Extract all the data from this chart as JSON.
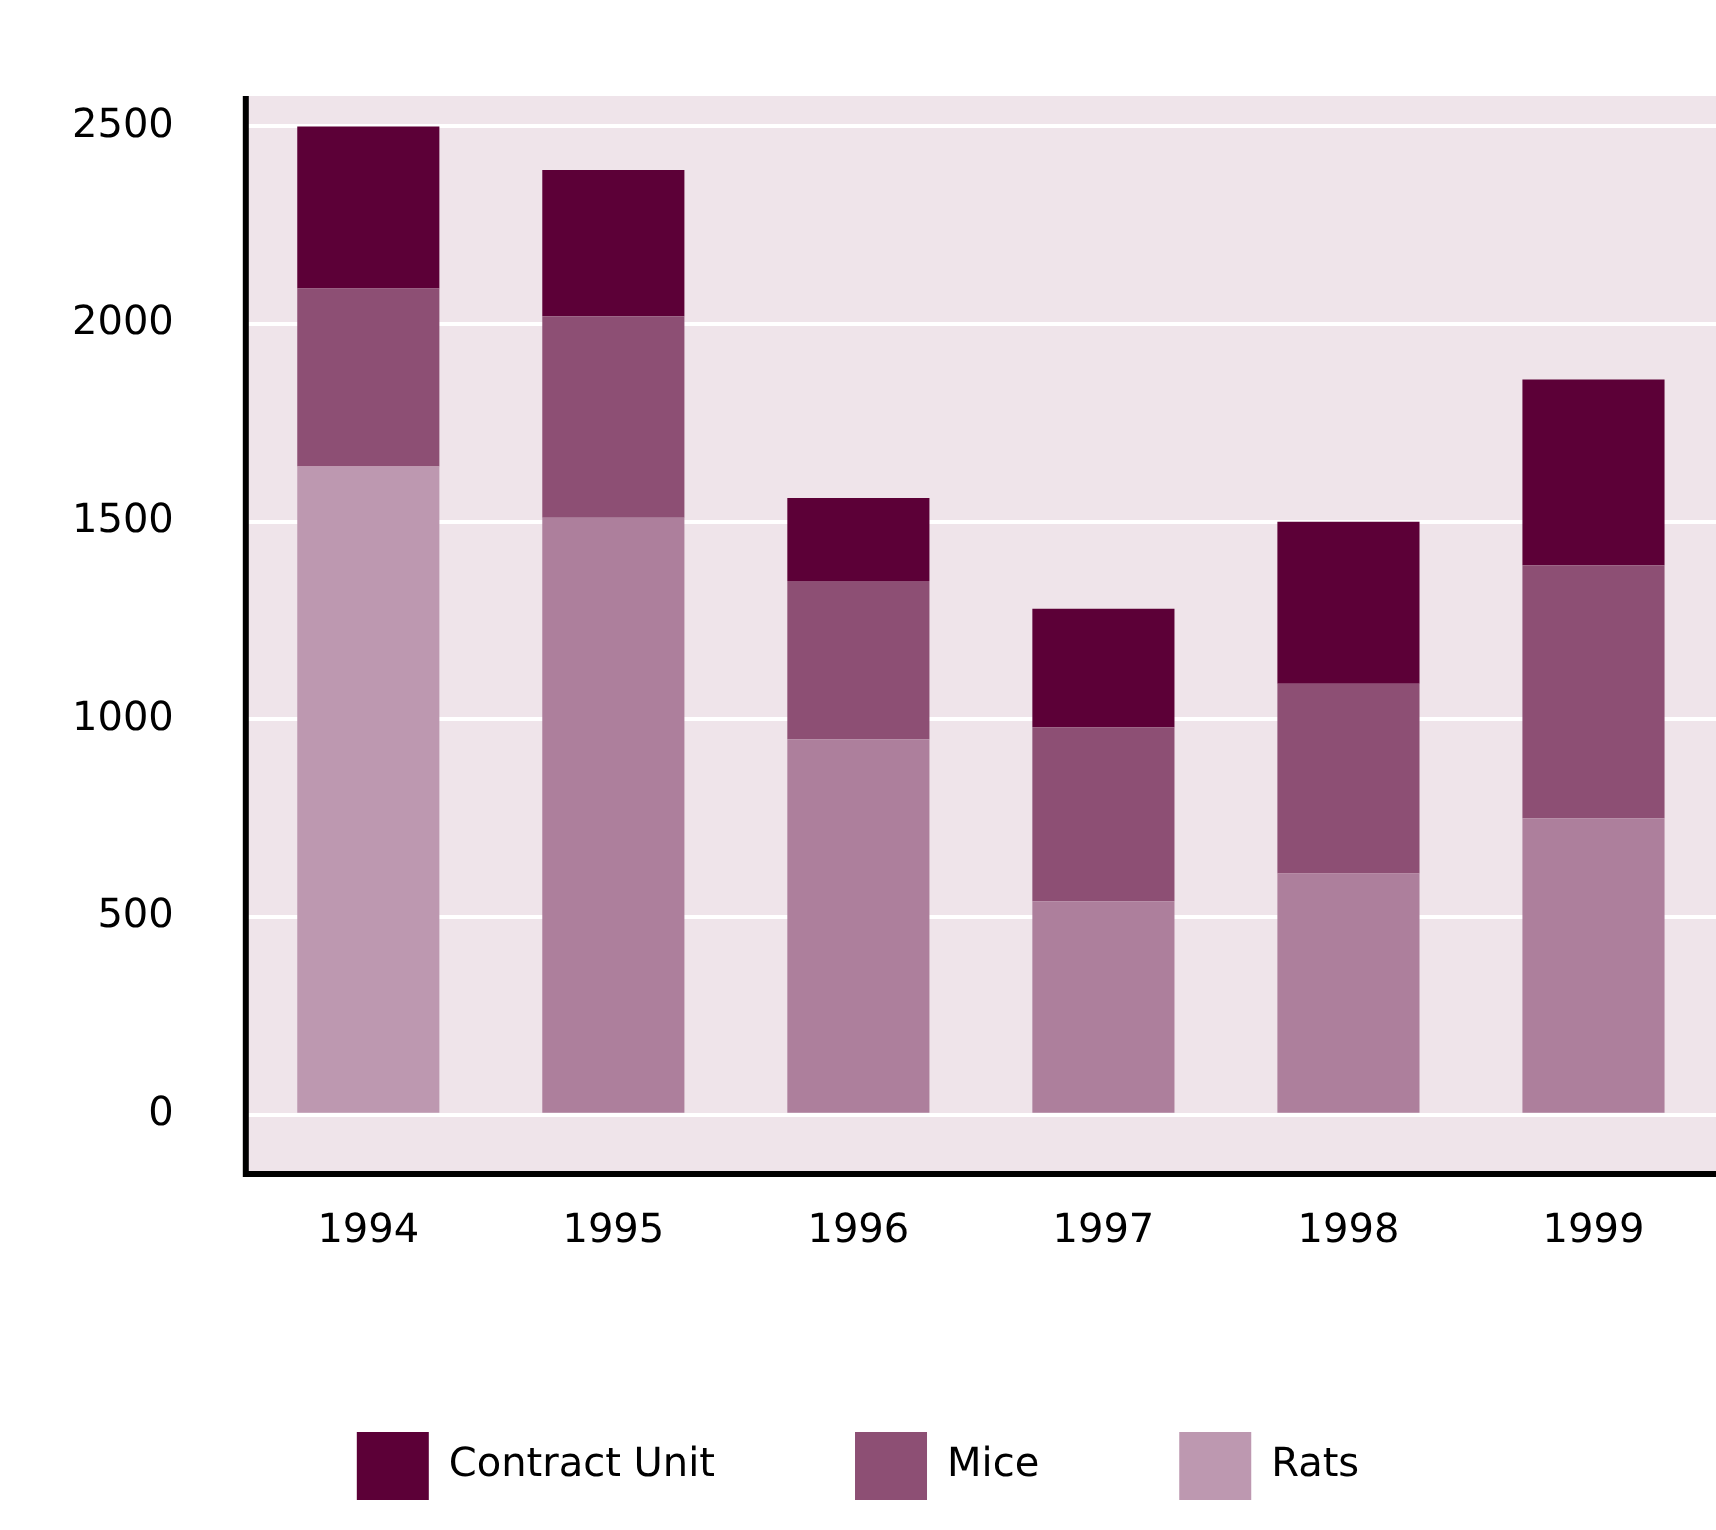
{
  "chart_data": {
    "type": "bar",
    "stacked": true,
    "categories": [
      "1994",
      "1995",
      "1996",
      "1997",
      "1998",
      "1999"
    ],
    "series": [
      {
        "name": "Rats",
        "color": "#bd98b0",
        "colors": [
          "#bd98b0",
          "#ad7f9c",
          "#ad7f9c",
          "#ad7f9c",
          "#ad7f9c",
          "#ad7f9c"
        ],
        "values": [
          1640,
          1510,
          950,
          540,
          610,
          750
        ]
      },
      {
        "name": "Mice",
        "color": "#8d4f74",
        "values": [
          450,
          510,
          400,
          440,
          480,
          640
        ]
      },
      {
        "name": "Contract Unit",
        "color": "#5c0037",
        "values": [
          410,
          370,
          210,
          300,
          410,
          470
        ]
      }
    ],
    "ylim": [
      -145,
      2577
    ],
    "yticks": [
      0,
      500,
      1000,
      1500,
      2000,
      2500
    ],
    "grid": "y",
    "legend": "bottom"
  }
}
